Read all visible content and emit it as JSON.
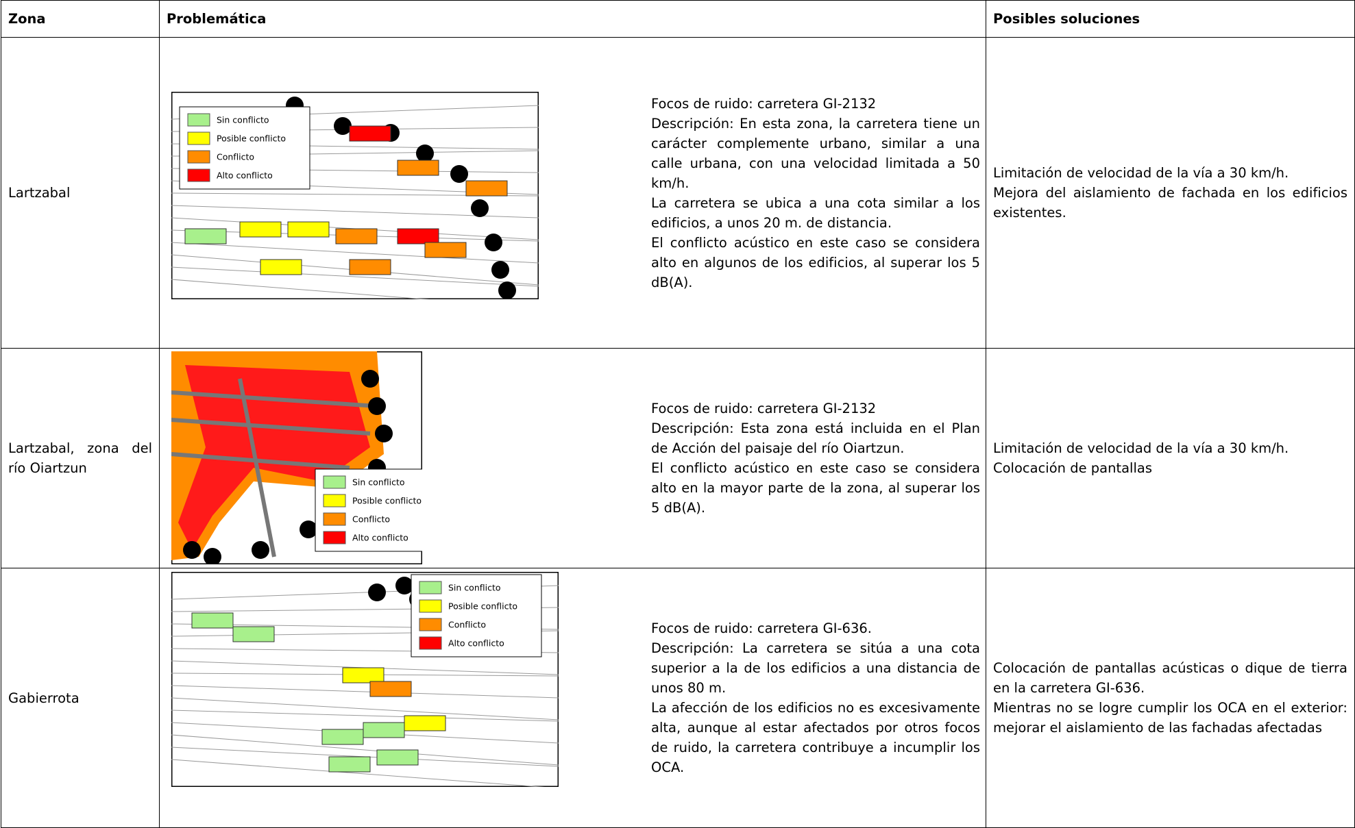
{
  "table": {
    "headers": [
      "Zona",
      "Problemática",
      "Posibles soluciones"
    ],
    "map_legend": [
      "Sin conflicto",
      "Posible conflicto",
      "Conflicto",
      "Alto conflicto"
    ],
    "rows": [
      {
        "zone": "Lartzabal",
        "problem": [
          "Focos de ruido: carretera GI-2132",
          "Descripción: En esta zona, la carretera tiene un carácter complemente urbano, similar a una calle urbana, con una velocidad limitada a 50 km/h.",
          "La carretera se ubica a una cota similar a los edificios, a unos 20 m. de distancia.",
          "El conflicto acústico en este caso se considera alto en algunos de los edificios, al superar los 5 dB(A)."
        ],
        "solutions": [
          "Limitación de velocidad de la vía a 30 km/h.",
          "Mejora del aislamiento de fachada en los edificios existentes."
        ]
      },
      {
        "zone": "Lartzabal, zona del río Oiartzun",
        "problem": [
          "Focos de ruido: carretera GI-2132",
          "Descripción: Esta zona está incluida en el Plan de Acción del paisaje del río Oiartzun.",
          "El conflicto acústico en este caso se considera alto en la mayor parte de la zona, al superar los 5 dB(A)."
        ],
        "solutions": [
          "Limitación de velocidad de la vía a 30 km/h.",
          "Colocación de pantallas"
        ]
      },
      {
        "zone": "Gabierrota",
        "problem": [
          "Focos de ruido: carretera GI-636.",
          "Descripción: La carretera se sitúa a una cota superior a la de los edificios a una distancia de unos 80 m.",
          "La afección de los edificios no es excesivamente alta, aunque al estar afectados por otros focos de ruido, la carretera contribuye a incumplir los OCA."
        ],
        "solutions": [
          "Colocación de pantallas acústicas o dique de tierra en la carretera GI-636.",
          "Mientras no se logre cumplir los OCA en el exterior: mejorar el aislamiento de las fachadas afectadas"
        ]
      }
    ]
  }
}
